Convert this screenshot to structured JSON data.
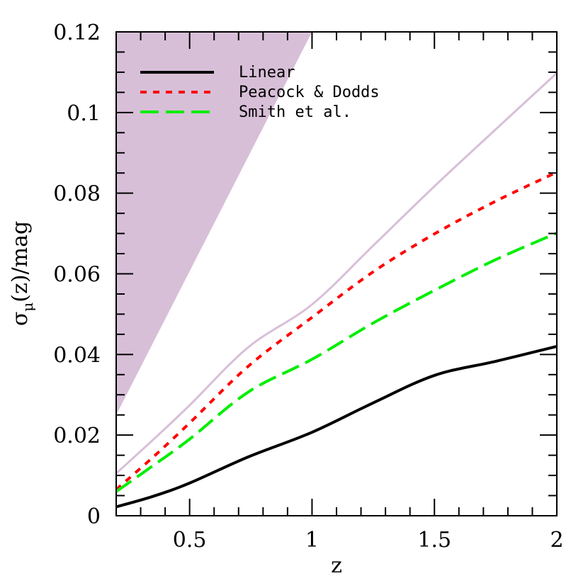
{
  "chart_data": {
    "type": "line",
    "title": "",
    "xlabel": "z",
    "ylabel": "σ_μ(z)/mag",
    "xlim": [
      0.2,
      2.0
    ],
    "ylim": [
      0,
      0.12
    ],
    "xticks_major": [
      0.5,
      1,
      1.5,
      2
    ],
    "xtick_labels": [
      "0.5",
      "1",
      "1.5",
      "2"
    ],
    "xticks_minor_step": 0.1,
    "yticks_major": [
      0,
      0.02,
      0.04,
      0.06,
      0.08,
      0.1,
      0.12
    ],
    "ytick_labels": [
      "0",
      "0.02",
      "0.04",
      "0.06",
      "0.08",
      "0.1",
      "0.12"
    ],
    "yticks_minor_step": 0.005,
    "grid": false,
    "legend_position": "upper-left",
    "x": [
      0.2,
      0.35,
      0.5,
      0.74,
      1.0,
      1.25,
      1.5,
      1.75,
      2.0
    ],
    "series": [
      {
        "name": "Linear",
        "style": "solid",
        "color": "#000000",
        "values": [
          0.0022,
          0.0048,
          0.0081,
          0.0146,
          0.0207,
          0.028,
          0.0348,
          0.0383,
          0.042
        ]
      },
      {
        "name": "Peacock & Dodds",
        "style": "short-dash",
        "color": "#ff0000",
        "values": [
          0.0065,
          0.0145,
          0.023,
          0.0371,
          0.0492,
          0.0605,
          0.0699,
          0.078,
          0.0852
        ]
      },
      {
        "name": "Smith et al.",
        "style": "long-dash",
        "color": "#00ee00",
        "values": [
          0.006,
          0.0124,
          0.019,
          0.0307,
          0.0388,
          0.0478,
          0.0559,
          0.0635,
          0.0701
        ]
      },
      {
        "name": "reference-line",
        "style": "solid",
        "color": "#d8bfd8",
        "in_legend": false,
        "values": [
          0.0105,
          0.0188,
          0.0274,
          0.0418,
          0.0524,
          0.067,
          0.0817,
          0.0958,
          0.1098
        ]
      }
    ],
    "shaded_region": {
      "color": "#d8bfd8",
      "description": "excluded region above line from (0.2, 0.025) to (1.0, 0.12)",
      "boundary": [
        [
          0.2,
          0.025
        ],
        [
          1.0,
          0.12
        ]
      ]
    }
  },
  "legend": {
    "items": [
      {
        "label": "Linear",
        "color": "#000000",
        "dash": ""
      },
      {
        "label": "Peacock & Dodds",
        "color": "#ff0000",
        "dash": "9,9"
      },
      {
        "label": "Smith et al.",
        "color": "#00ee00",
        "dash": "26,10"
      }
    ]
  }
}
